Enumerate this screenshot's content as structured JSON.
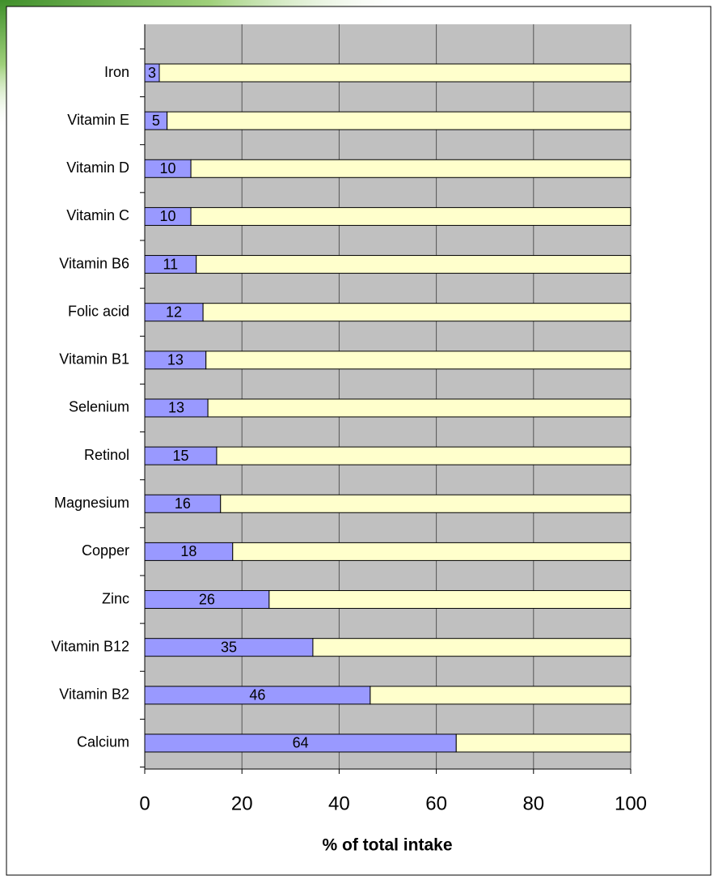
{
  "chart_data": {
    "type": "stacked-bar-horizontal",
    "xlabel": "% of total intake",
    "categories": [
      "Iron",
      "Vitamin E",
      "Vitamin D",
      "Vitamin C",
      "Vitamin B6",
      "Folic acid",
      "Vitamin B1",
      "Selenium",
      "Retinol",
      "Magnesium",
      "Copper",
      "Zinc",
      "Vitamin B12",
      "Vitamin B2",
      "Calcium"
    ],
    "series": [
      {
        "color": "#9999ff",
        "values": [
          3.0,
          4.6,
          9.5,
          9.5,
          10.6,
          12.0,
          12.6,
          13.0,
          14.8,
          15.6,
          18.1,
          25.6,
          34.6,
          46.4,
          64.1
        ],
        "value_labels": [
          "3",
          "5",
          "10",
          "10",
          "11",
          "12",
          "13",
          "13",
          "15",
          "16",
          "18",
          "26",
          "35",
          "46",
          "64"
        ]
      },
      {
        "color": "#ffffcc",
        "values": [
          97.0,
          95.4,
          90.5,
          90.5,
          89.4,
          88.0,
          87.4,
          87.0,
          85.2,
          84.4,
          81.9,
          74.4,
          65.4,
          53.6,
          35.9
        ]
      }
    ],
    "xlim": [
      0,
      100
    ],
    "xticks": [
      0,
      20,
      40,
      60,
      80,
      100
    ],
    "grid": true,
    "plot_background": "#c0c0c0"
  }
}
